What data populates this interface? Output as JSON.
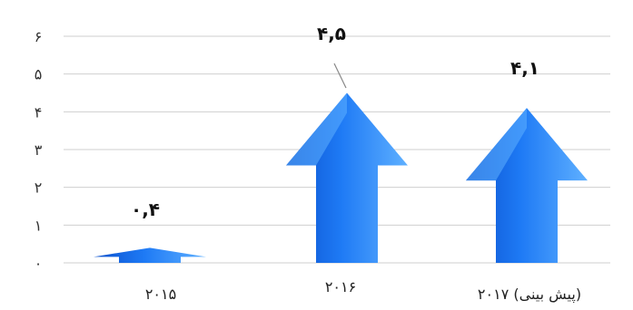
{
  "chart_data": {
    "type": "bar",
    "categories": [
      "۲۰۱۵",
      "۲۰۱۶",
      "۲۰۱۷ (پیش بینی)"
    ],
    "values": [
      0.4,
      4.5,
      4.1
    ],
    "data_labels": [
      "۰,۴",
      "۴,۵",
      "۴,۱"
    ],
    "ylim": [
      0,
      6
    ],
    "yticks": [
      0,
      1,
      2,
      3,
      4,
      5,
      6
    ],
    "ytick_labels": [
      "۰",
      "۱",
      "۲",
      "۳",
      "۴",
      "۵",
      "۶"
    ],
    "grid": true,
    "mark_style": "arrow",
    "colors": {
      "arrow_light": "#5fb0ff",
      "arrow_mid": "#1e7af5",
      "arrow_dark": "#0b50cc",
      "grid": "#cfcfcf",
      "leader_line": "#888888"
    }
  }
}
